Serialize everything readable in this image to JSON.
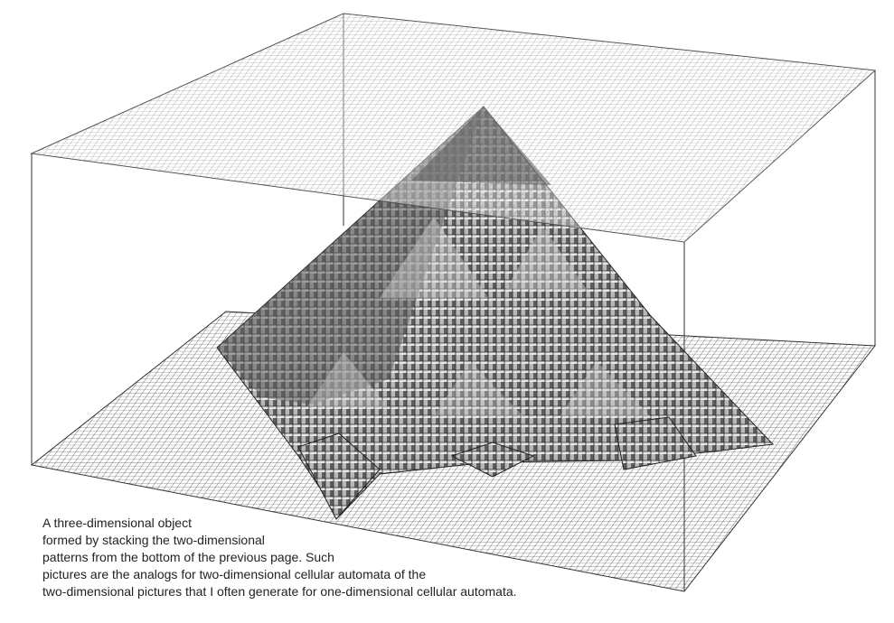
{
  "figure": {
    "subject": "3D stacked cellular automaton object",
    "colors": {
      "background": "#ffffff",
      "grid": "#555555",
      "frame": "#333333",
      "top_face": "#eeeeee",
      "side_light": "#bdbdbd",
      "side_dark": "#6a6a6a",
      "interior": "#8c8c8c"
    }
  },
  "caption": {
    "lines": [
      "A three-dimensional object",
      "formed by stacking the two-dimensional",
      "patterns from the bottom of the previous page. Such",
      "pictures are the analogs for two-dimensional cellular automata of the",
      "two-dimensional pictures that I often generate for one-dimensional cellular automata."
    ]
  }
}
